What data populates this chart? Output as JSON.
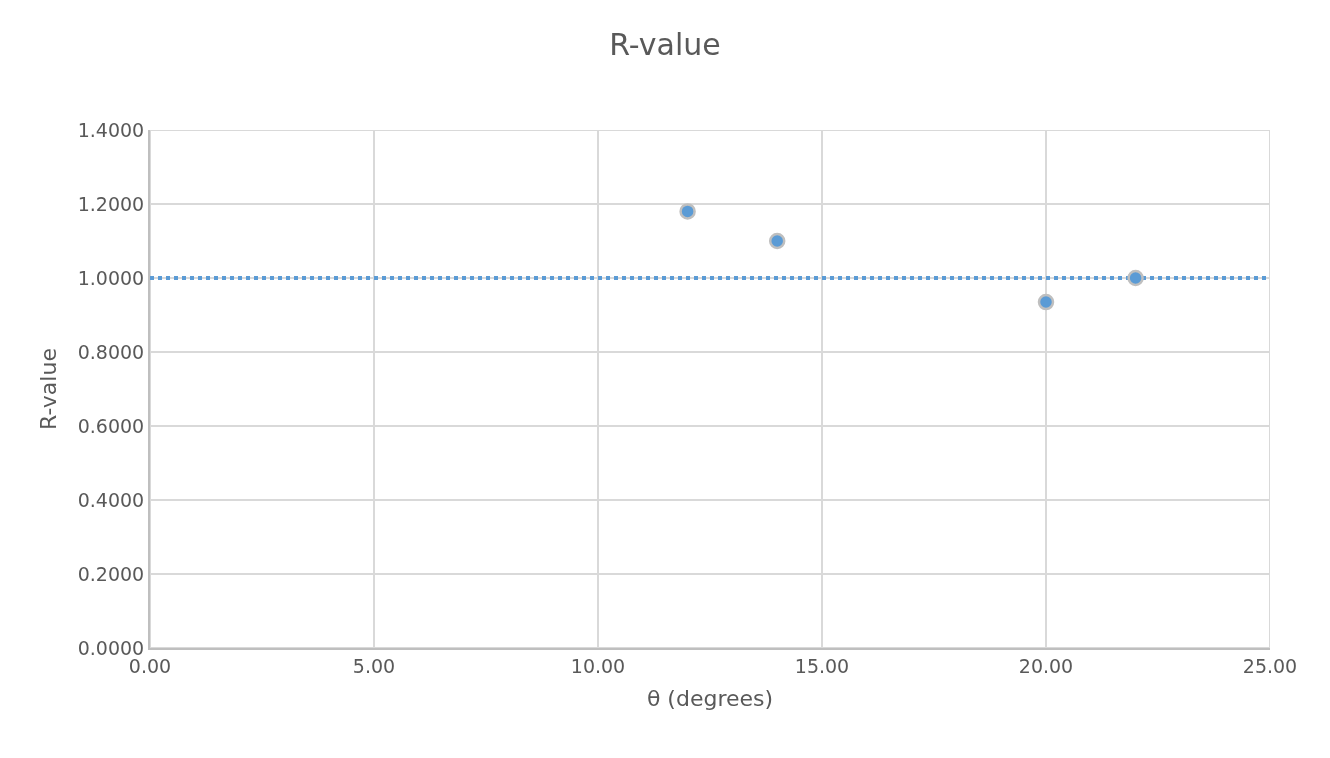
{
  "chart_data": {
    "type": "scatter",
    "title": "R-value",
    "xlabel": "θ (degrees)",
    "ylabel": "R-value",
    "x": [
      12,
      14,
      20,
      22
    ],
    "series": [
      {
        "color": "#5b9bd5",
        "values": [
          1.18,
          1.1,
          0.935,
          1.0
        ]
      }
    ],
    "xlim": [
      0,
      25
    ],
    "ylim": [
      0,
      1.4
    ],
    "xticks": [
      {
        "value": 0,
        "label": "0.00"
      },
      {
        "value": 5,
        "label": "5.00"
      },
      {
        "value": 10,
        "label": "10.00"
      },
      {
        "value": 15,
        "label": "15.00"
      },
      {
        "value": 20,
        "label": "20.00"
      },
      {
        "value": 25,
        "label": "25.00"
      }
    ],
    "yticks": [
      {
        "value": 0,
        "label": "0.0000"
      },
      {
        "value": 0.2,
        "label": "0.2000"
      },
      {
        "value": 0.4,
        "label": "0.4000"
      },
      {
        "value": 0.6,
        "label": "0.6000"
      },
      {
        "value": 0.8,
        "label": "0.8000"
      },
      {
        "value": 1.0,
        "label": "1.0000"
      },
      {
        "value": 1.2,
        "label": "1.2000"
      },
      {
        "value": 1.4,
        "label": "1.4000"
      }
    ],
    "ref_lines": [
      {
        "axis": "y",
        "value": 1.0,
        "color": "#5b9bd5",
        "line_style": "dotted"
      }
    ],
    "grid": true,
    "marker": "circle"
  }
}
